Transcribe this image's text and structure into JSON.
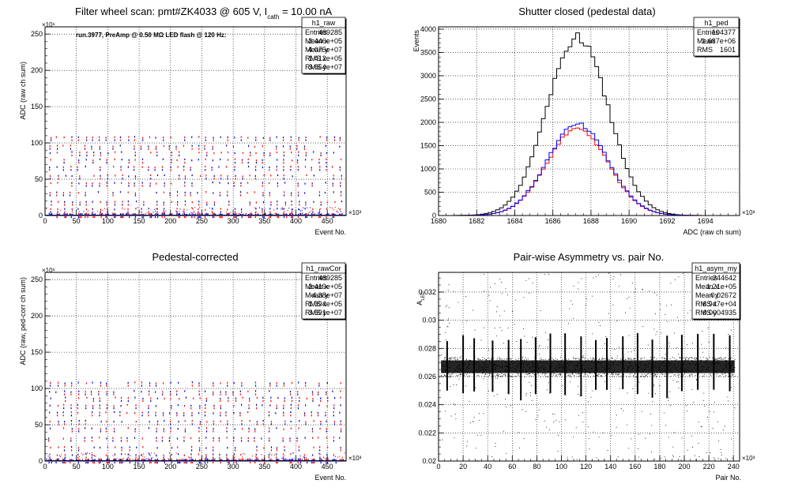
{
  "chart_data": [
    {
      "id": "raw",
      "type": "scatter",
      "title": "Filter wheel scan: pmt#ZK4033 @   605 V, I",
      "title_sub": "cath",
      "title_tail": " = 10.00 nA",
      "annotation": "run.3977, PreAmp @ 0.50 MΩ LED flash @  120 Hz:",
      "xlabel": "Event No.",
      "ylabel": "ADC (raw ch sum)",
      "x_exponent": "×10³",
      "y_exponent": "×10⁶",
      "xlim": [
        0,
        480
      ],
      "ylim": [
        0,
        260
      ],
      "xticks": [
        "0",
        "50",
        "100",
        "150",
        "200",
        "250",
        "300",
        "350",
        "400",
        "450"
      ],
      "yticks": [
        "0",
        "50",
        "100",
        "150",
        "200",
        "250"
      ],
      "colors": {
        "red": "#ff0000",
        "blue": "#0000cc"
      },
      "bands": [
        2,
        9,
        19,
        32,
        45,
        55,
        67,
        77,
        87,
        96,
        108
      ],
      "stats": {
        "name": "h1_raw",
        "rows": [
          [
            "Entries",
            "489285"
          ],
          [
            "Mean x",
            "2.446e+05"
          ],
          [
            "Mean y",
            "4.075e+07"
          ],
          [
            "RMS x",
            "1.412e+05"
          ],
          [
            "RMS y",
            "3.654e+07"
          ]
        ]
      }
    },
    {
      "id": "ped",
      "type": "line",
      "title": "Shutter closed (pedestal data)",
      "xlabel": "ADC (raw ch sum)",
      "ylabel": "Events",
      "x_exponent": "×10³",
      "xlim": [
        1680,
        1695.8
      ],
      "ylim": [
        0,
        4050
      ],
      "xticks": [
        "1680",
        "1682",
        "1684",
        "1686",
        "1688",
        "1690",
        "1692",
        "1694"
      ],
      "yticks": [
        "0",
        "500",
        "1000",
        "1500",
        "2000",
        "2500",
        "3000",
        "3500",
        "4000"
      ],
      "series": [
        {
          "color": "#000000",
          "mean": 1687.3,
          "sigma": 1.6,
          "peak": 3830
        },
        {
          "color": "#ff0000",
          "mean": 1687.3,
          "sigma": 1.6,
          "peak": 1870
        },
        {
          "color": "#0000ff",
          "mean": 1687.3,
          "sigma": 1.6,
          "peak": 1950
        }
      ],
      "stats": {
        "name": "h1_ped",
        "rows": [
          [
            "Entries",
            "104377"
          ],
          [
            "Mean",
            "1.687e+06"
          ],
          [
            "RMS",
            "1601"
          ]
        ]
      }
    },
    {
      "id": "rawcor",
      "type": "scatter",
      "title": "Pedestal-corrected",
      "xlabel": "Event No.",
      "ylabel": "ADC (raw, ped-corr ch sum)",
      "x_exponent": "×10³",
      "y_exponent": "×10⁶",
      "xlim": [
        0,
        480
      ],
      "ylim": [
        0,
        260
      ],
      "xticks": [
        "0",
        "50",
        "100",
        "150",
        "200",
        "250",
        "300",
        "350",
        "400",
        "450"
      ],
      "yticks": [
        "0",
        "50",
        "100",
        "150",
        "200",
        "250"
      ],
      "bands": [
        2,
        9,
        19,
        32,
        45,
        55,
        67,
        77,
        87,
        96,
        108
      ],
      "stats": {
        "name": "h1_rawCor",
        "rows": [
          [
            "Entries",
            "489285"
          ],
          [
            "Mean x",
            "2.419e+05"
          ],
          [
            "Mean y",
            "4.38e+07"
          ],
          [
            "RMS x",
            "1.394e+05"
          ],
          [
            "RMS y",
            "3.591e+07"
          ]
        ]
      }
    },
    {
      "id": "asym",
      "type": "scatter",
      "title": "Pair-wise Asymmetry vs. pair No.",
      "xlabel": "Pair No.",
      "ylabel": "A",
      "ylabel_sub": "LED",
      "x_exponent": "×10³",
      "xlim": [
        0,
        245
      ],
      "ylim": [
        0.02,
        0.0334
      ],
      "xticks": [
        "0",
        "20",
        "40",
        "60",
        "80",
        "100",
        "120",
        "140",
        "160",
        "180",
        "200",
        "220",
        "240"
      ],
      "yticks": [
        "0.02",
        "0.022",
        "0.024",
        "0.026",
        "0.028",
        "0.03",
        "0.032"
      ],
      "band_center": 0.0267,
      "spike_pairs": [
        7,
        20,
        29,
        44,
        57,
        67,
        79,
        91,
        103,
        116,
        128,
        137,
        150,
        162,
        174,
        186,
        198,
        211,
        224,
        237
      ],
      "stats": {
        "name": "h1_asym_my",
        "rows": [
          [
            "Entries",
            "244642"
          ],
          [
            "Mean x",
            "1.21e+05"
          ],
          [
            "Mean y",
            "0.02672"
          ],
          [
            "RMS x",
            "6.947e+04"
          ],
          [
            "RMS y",
            "0.0004935"
          ]
        ]
      }
    }
  ]
}
